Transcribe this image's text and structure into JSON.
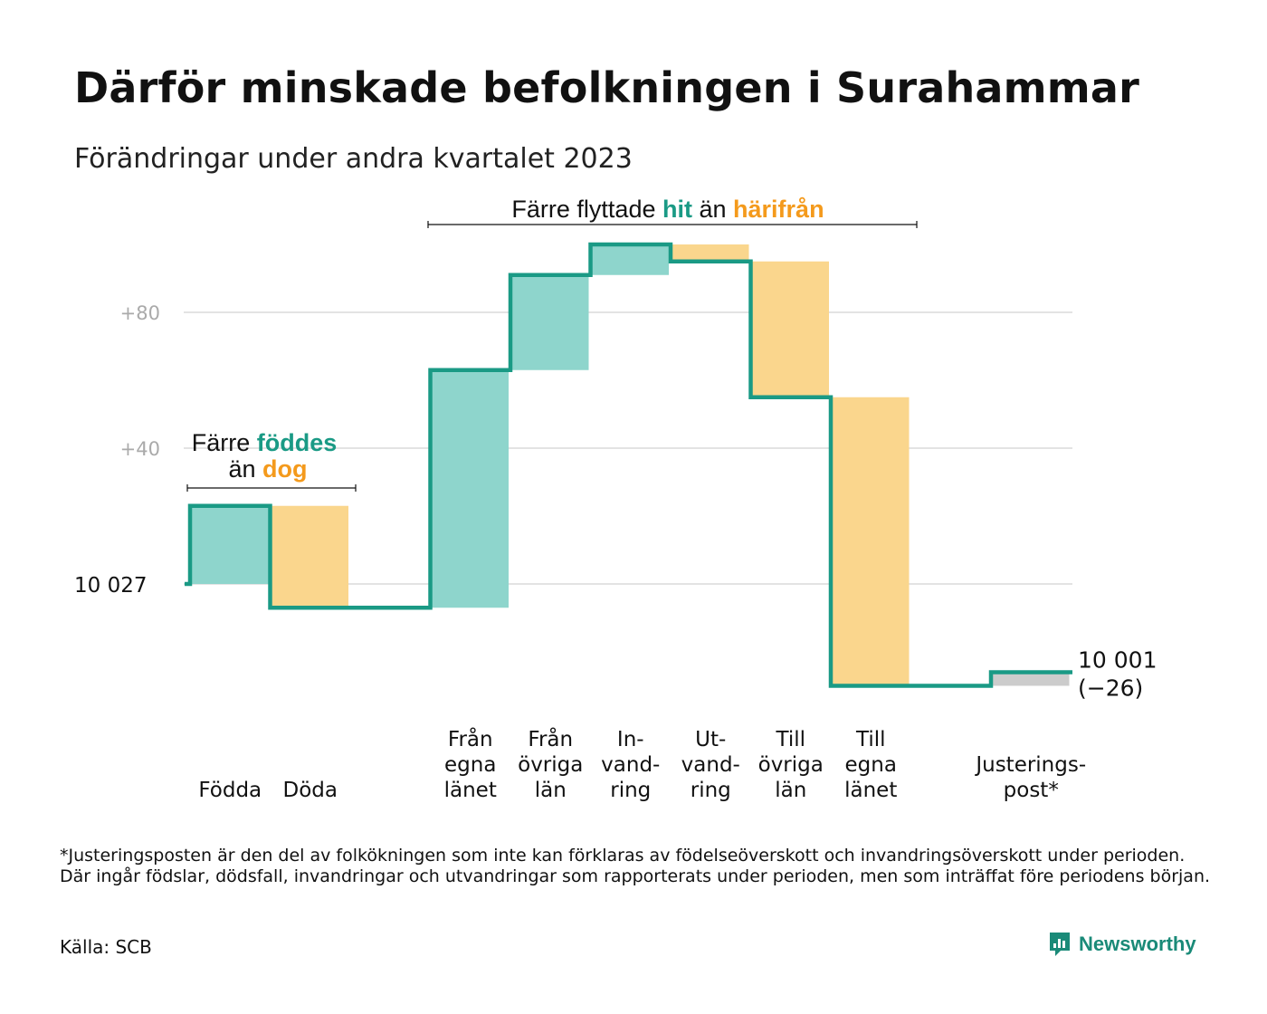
{
  "title": "Därför minskade befolkningen i Surahammar",
  "subtitle": "Förändringar under andra kvartalet 2023",
  "colors": {
    "teal": "#1a9a85",
    "teal_fill": "#8ed5cc",
    "orange": "#f49a1c",
    "orange_fill": "#fad68d",
    "gray": "#cccccc",
    "grid": "#e3e3e3"
  },
  "chart_data": {
    "type": "waterfall",
    "start_value": 10027,
    "start_label": "10 027",
    "end_label": "10 001",
    "end_change": "(−26)",
    "y_ticks": [
      "+40",
      "+80"
    ],
    "grid": true,
    "steps": [
      {
        "label": [
          "Födda"
        ],
        "change": 23
      },
      {
        "label": [
          "Döda"
        ],
        "change": -30
      },
      {
        "label": [],
        "change": 0
      },
      {
        "label": [
          "Från",
          "egna",
          "länet"
        ],
        "change": 70
      },
      {
        "label": [
          "Från",
          "övriga",
          "län"
        ],
        "change": 28
      },
      {
        "label": [
          "In-",
          "vand-",
          "ring"
        ],
        "change": 9
      },
      {
        "label": [
          "Ut-",
          "vand-",
          "ring"
        ],
        "change": -5
      },
      {
        "label": [
          "Till",
          "övriga",
          "län"
        ],
        "change": -40
      },
      {
        "label": [
          "Till",
          "egna",
          "länet"
        ],
        "change": -85
      },
      {
        "label": [],
        "change": 0
      },
      {
        "label": [
          "Justerings-",
          "post*"
        ],
        "change": 4
      }
    ],
    "annotations": {
      "births": {
        "line1_prefix": "Färre ",
        "line1_highlight": "föddes",
        "line2_prefix": "än ",
        "line2_highlight": "dog"
      },
      "moves": {
        "prefix": "Färre flyttade ",
        "highlight1": "hit",
        "middle": " än ",
        "highlight2": "härifrån"
      }
    }
  },
  "footnote": "*Justeringsposten är den del av folkökningen som inte kan förklaras av födelseöverskott och invandringsöverskott under perioden. Där ingår födslar, dödsfall, invandringar och utvandringar som rapporterats under perioden, men som inträffat före periodens början.",
  "source": "Källa: SCB",
  "brand": "Newsworthy"
}
